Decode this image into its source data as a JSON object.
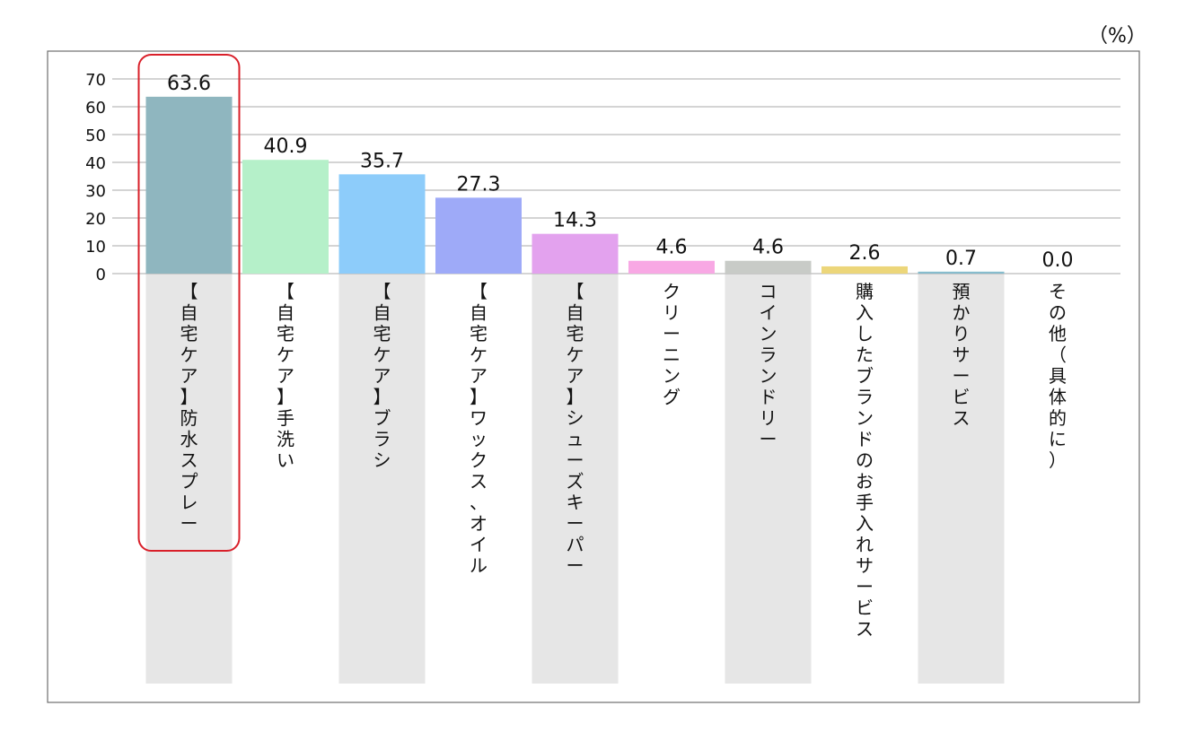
{
  "unit_label": "（%）",
  "chart_data": {
    "type": "bar",
    "title": "",
    "xlabel": "",
    "ylabel": "",
    "ylim": [
      0,
      70
    ],
    "yticks": [
      0,
      10,
      20,
      30,
      40,
      50,
      60,
      70
    ],
    "grid": true,
    "categories": [
      "【自宅ケア】防水スプレー",
      "【自宅ケア】手洗い",
      "【自宅ケア】ブラシ",
      "【自宅ケア】ワックス、オイル",
      "【自宅ケア】シューズキーパー",
      "クリーニング",
      "コインランドリー",
      "購入したブランドのお手入れサービス",
      "預かりサービス",
      "その他（具体的に）"
    ],
    "values": [
      63.6,
      40.9,
      35.7,
      27.3,
      14.3,
      4.6,
      4.6,
      2.6,
      0.7,
      0.0
    ],
    "value_labels": [
      "63.6",
      "40.9",
      "35.7",
      "27.3",
      "14.3",
      "4.6",
      "4.6",
      "2.6",
      "0.7",
      "0.0"
    ],
    "colors": [
      "#8fb6bf",
      "#b5f0c9",
      "#8dccfa",
      "#9eaaf8",
      "#e3a2ee",
      "#f8a8e4",
      "#c8cbc7",
      "#ecd67a",
      "#86bccd",
      "#cccccc"
    ],
    "highlighted_index": 0,
    "highlight_color": "#d9202a",
    "label_band_color": "#e6e6e6"
  }
}
